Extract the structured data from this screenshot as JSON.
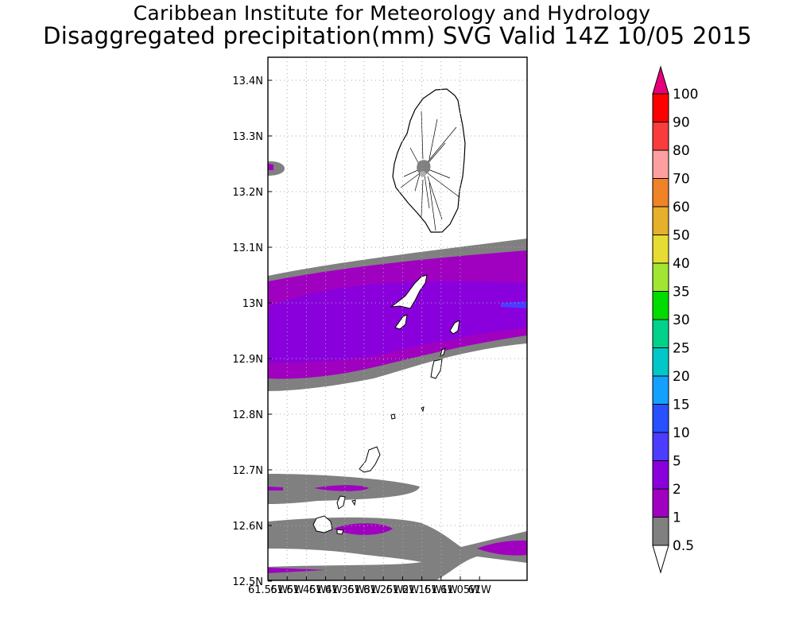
{
  "title_line1": "Caribbean Institute for Meteorology and Hydrology",
  "title_line2": "Disaggregated precipitation(mm) SVG Valid 14Z 10/05 2015",
  "lat_labels": [
    "13.4N",
    "13.3N",
    "13.2N",
    "13.1N",
    "13N",
    "12.9N",
    "12.8N",
    "12.7N",
    "12.6N",
    "12.5N"
  ],
  "lon_labels": [
    "61.55W",
    "61.5W",
    "61.45W",
    "61.4W",
    "61.35W",
    "61.3W",
    "61.25W",
    "61.2W",
    "61.15W",
    "61.1W",
    "61.05W",
    "61W"
  ],
  "colorbar": {
    "levels": [
      "0.5",
      "1",
      "2",
      "5",
      "10",
      "15",
      "20",
      "25",
      "30",
      "35",
      "40",
      "50",
      "60",
      "70",
      "80",
      "90",
      "100"
    ],
    "colors": [
      "#808080",
      "#a000c0",
      "#8a00dc",
      "#4b3cff",
      "#2850ff",
      "#14a0ff",
      "#00c8c8",
      "#00d28c",
      "#00dc00",
      "#a0e632",
      "#e6dc32",
      "#e6af2d",
      "#f08228",
      "#ffa0a0",
      "#fa3c3c",
      "#ff0000",
      "#e6007a"
    ],
    "under_color": "#ffffff",
    "over_color": "#e6007a"
  },
  "legend_colors": {
    "gray": "#808080",
    "purple": "#a000c0",
    "violet": "#8a00dc",
    "blue": "#4b3cff"
  }
}
